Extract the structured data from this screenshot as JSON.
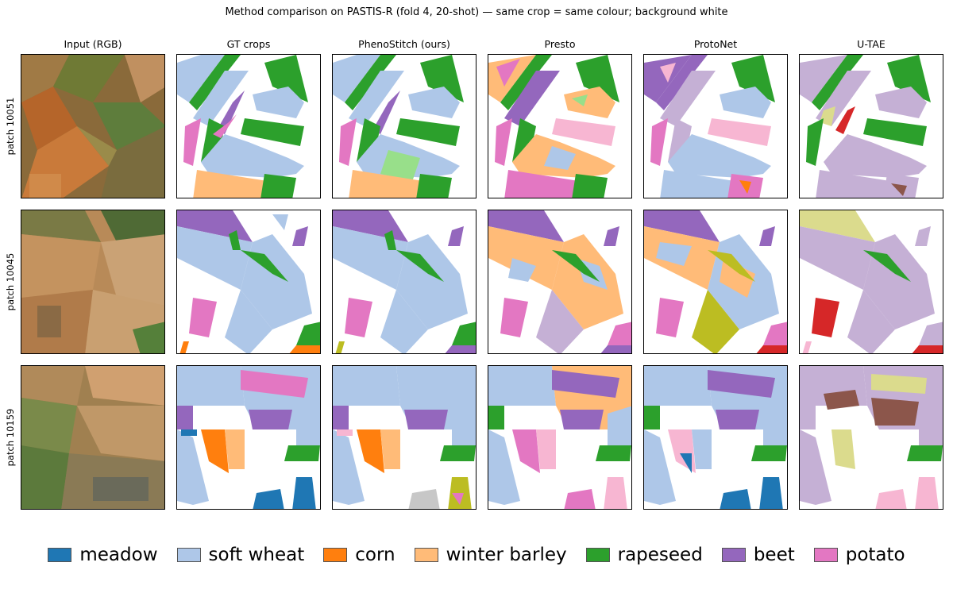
{
  "title": "Method comparison on PASTIS-R (fold 4, 20-shot) — same crop = same colour; background white",
  "columns": [
    "Input (RGB)",
    "GT crops",
    "PhenoStitch (ours)",
    "Presto",
    "ProtoNet",
    "U-TAE"
  ],
  "rows": [
    "patch 10051",
    "patch 10045",
    "patch 10159"
  ],
  "legend": [
    {
      "label": "meadow",
      "color": "#1f77b4"
    },
    {
      "label": "soft wheat",
      "color": "#aec7e8"
    },
    {
      "label": "corn",
      "color": "#ff7f0e"
    },
    {
      "label": "winter barley",
      "color": "#ffbb78"
    },
    {
      "label": "rapeseed",
      "color": "#2ca02c"
    },
    {
      "label": "beet",
      "color": "#9467bd"
    },
    {
      "label": "potato",
      "color": "#e377c2"
    }
  ],
  "extra_colors": {
    "meadow_green": "#98df8a",
    "red": "#d62728",
    "brown": "#8c564b",
    "pink_light": "#f7b6d2",
    "lilac": "#c5b0d5",
    "gray": "#c7c7c7",
    "olive": "#bcbd22",
    "khaki": "#dbdb8d"
  }
}
